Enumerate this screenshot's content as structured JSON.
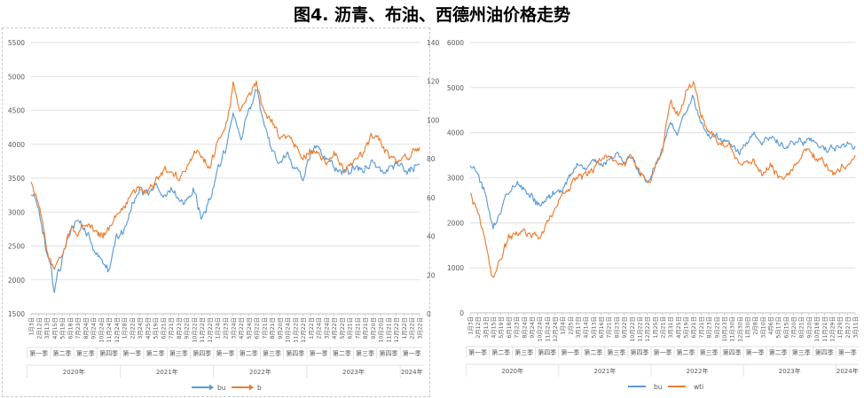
{
  "figure_title": "图4. 沥青、布油、西德州油价格走势",
  "colors": {
    "bu": "#5b9bd5",
    "oil": "#ed7d31",
    "grid": "#d9d9d9",
    "axis": "#bfbfbf"
  },
  "chart_data": [
    {
      "type": "line",
      "title": "",
      "y_left": {
        "ylim": [
          1500,
          5500
        ],
        "ticks": [
          1500,
          2000,
          2500,
          3000,
          3500,
          4000,
          4500,
          5000,
          5500
        ]
      },
      "y_right": {
        "ylim": [
          0,
          140
        ],
        "ticks": [
          0,
          20,
          40,
          60,
          80,
          100,
          120,
          140
        ]
      },
      "date_ticks": [
        "1月3日",
        "2月12日",
        "3月13日",
        "4月15日",
        "5月19日",
        "6月18日",
        "7月23日",
        "8月24日",
        "9月24日",
        "10月24日",
        "11月24日",
        "12月24日",
        "1月28日",
        "2月22日",
        "3月24日",
        "4月25日",
        "5月19日",
        "6月21日",
        "7月21日",
        "8月23日",
        "9月22日",
        "10月22日",
        "11月22日",
        "12月22日",
        "1月24日",
        "2月23日",
        "3月24日",
        "4月22日",
        "5月24日",
        "6月22日",
        "7月21日",
        "8月21日",
        "9月20日",
        "10月24日",
        "11月22日",
        "12月22日",
        "1月22日",
        "2月24日",
        "3月24日",
        "4月22日",
        "5月22日",
        "6月21日",
        "7月21日",
        "8月21日",
        "9月20日",
        "10月20日",
        "11月21日",
        "12月22日",
        "1月22日",
        "2月22日",
        "3月22日"
      ],
      "quarter_groups": [
        {
          "label": "第一季",
          "count": 3
        },
        {
          "label": "第二季",
          "count": 3
        },
        {
          "label": "第三季",
          "count": 3
        },
        {
          "label": "第四季",
          "count": 3
        },
        {
          "label": "第一季",
          "count": 3
        },
        {
          "label": "第二季",
          "count": 3
        },
        {
          "label": "第三季",
          "count": 3
        },
        {
          "label": "第四季",
          "count": 3
        },
        {
          "label": "第一季",
          "count": 3
        },
        {
          "label": "第二季",
          "count": 3
        },
        {
          "label": "第三季",
          "count": 3
        },
        {
          "label": "第四季",
          "count": 3
        },
        {
          "label": "第一季",
          "count": 3
        },
        {
          "label": "第二季",
          "count": 3
        },
        {
          "label": "第三季",
          "count": 3
        },
        {
          "label": "第四季",
          "count": 3
        },
        {
          "label": "第一季",
          "count": 3
        }
      ],
      "year_groups": [
        {
          "label": "2020年",
          "count": 12
        },
        {
          "label": "2021年",
          "count": 12
        },
        {
          "label": "2022年",
          "count": 12
        },
        {
          "label": "2023年",
          "count": 12
        },
        {
          "label": "2024年",
          "count": 3
        }
      ],
      "series": [
        {
          "name": "bu",
          "axis": "left",
          "x": [
            "2020-01",
            "2020-02",
            "2020-03",
            "2020-04",
            "2020-05",
            "2020-06",
            "2020-07",
            "2020-08",
            "2020-09",
            "2020-10",
            "2020-11",
            "2020-12",
            "2021-01",
            "2021-02",
            "2021-03",
            "2021-04",
            "2021-05",
            "2021-06",
            "2021-07",
            "2021-08",
            "2021-09",
            "2021-10",
            "2021-11",
            "2021-12",
            "2022-01",
            "2022-02",
            "2022-03",
            "2022-04",
            "2022-05",
            "2022-06",
            "2022-07",
            "2022-08",
            "2022-09",
            "2022-10",
            "2022-11",
            "2022-12",
            "2023-01",
            "2023-02",
            "2023-03",
            "2023-04",
            "2023-05",
            "2023-06",
            "2023-07",
            "2023-08",
            "2023-09",
            "2023-10",
            "2023-11",
            "2023-12",
            "2024-01",
            "2024-02",
            "2024-03"
          ],
          "values": [
            3300,
            3000,
            2400,
            1850,
            2300,
            2750,
            2850,
            2700,
            2500,
            2300,
            2150,
            2600,
            2750,
            3100,
            3300,
            3250,
            3450,
            3200,
            3350,
            3200,
            3150,
            3350,
            2900,
            3150,
            3600,
            3900,
            4400,
            4000,
            4500,
            4800,
            4250,
            3900,
            3750,
            3850,
            3650,
            3500,
            3850,
            3950,
            3800,
            3700,
            3600,
            3600,
            3650,
            3650,
            3750,
            3600,
            3650,
            3700,
            3600,
            3650,
            3700
          ]
        },
        {
          "name": "b",
          "axis": "right",
          "x": [
            "2020-01",
            "2020-02",
            "2020-03",
            "2020-04",
            "2020-05",
            "2020-06",
            "2020-07",
            "2020-08",
            "2020-09",
            "2020-10",
            "2020-11",
            "2020-12",
            "2021-01",
            "2021-02",
            "2021-03",
            "2021-04",
            "2021-05",
            "2021-06",
            "2021-07",
            "2021-08",
            "2021-09",
            "2021-10",
            "2021-11",
            "2021-12",
            "2022-01",
            "2022-02",
            "2022-03",
            "2022-04",
            "2022-05",
            "2022-06",
            "2022-07",
            "2022-08",
            "2022-09",
            "2022-10",
            "2022-11",
            "2022-12",
            "2023-01",
            "2023-02",
            "2023-03",
            "2023-04",
            "2023-05",
            "2023-06",
            "2023-07",
            "2023-08",
            "2023-09",
            "2023-10",
            "2023-11",
            "2023-12",
            "2024-01",
            "2024-02",
            "2024-03"
          ],
          "values": [
            68,
            56,
            33,
            23,
            32,
            42,
            43,
            45,
            42,
            40,
            44,
            50,
            55,
            63,
            65,
            65,
            68,
            73,
            74,
            70,
            74,
            84,
            80,
            76,
            87,
            97,
            118,
            105,
            113,
            120,
            104,
            98,
            90,
            93,
            88,
            80,
            84,
            83,
            77,
            82,
            75,
            75,
            79,
            85,
            92,
            88,
            82,
            78,
            79,
            82,
            86
          ]
        }
      ],
      "legend": "bottom"
    },
    {
      "type": "line",
      "title": "",
      "y": {
        "ylim": [
          0,
          6000
        ],
        "ticks": [
          0,
          1000,
          2000,
          3000,
          4000,
          5000,
          6000
        ]
      },
      "date_ticks": [
        "1月3日",
        "2月12日",
        "3月13日",
        "4月15日",
        "5月19日",
        "6月18日",
        "7月23日",
        "8月24日",
        "9月24日",
        "10月24日",
        "11月24日",
        "12月24日",
        "1月4日",
        "2月5日",
        "3月17日",
        "4月14日",
        "5月13日",
        "6月16日",
        "7月21日",
        "8月23日",
        "9月22日",
        "10月22日",
        "11月22日",
        "12月22日",
        "1月25日",
        "2月21日",
        "3月31日",
        "4月25日",
        "5月19日",
        "6月21日",
        "7月21日",
        "8月23日",
        "9月22日",
        "10月23日",
        "11月30日",
        "12月30日",
        "1月30日",
        "2月8日",
        "3月10日",
        "4月6日",
        "5月17日",
        "6月15日",
        "7月20日",
        "8月21日",
        "9月20日",
        "10月18日",
        "11月21日",
        "12月29日",
        "1月29日",
        "2月27日",
        "3月11日"
      ],
      "quarter_groups": [
        {
          "label": "第一季",
          "count": 3
        },
        {
          "label": "第二季",
          "count": 3
        },
        {
          "label": "第三季",
          "count": 3
        },
        {
          "label": "第四季",
          "count": 3
        },
        {
          "label": "第一季",
          "count": 3
        },
        {
          "label": "第二季",
          "count": 3
        },
        {
          "label": "第三季",
          "count": 3
        },
        {
          "label": "第四季",
          "count": 3
        },
        {
          "label": "第一季",
          "count": 3
        },
        {
          "label": "第二季",
          "count": 3
        },
        {
          "label": "第三季",
          "count": 3
        },
        {
          "label": "第四季",
          "count": 3
        },
        {
          "label": "第一季",
          "count": 3
        },
        {
          "label": "第二季",
          "count": 3
        },
        {
          "label": "第三季",
          "count": 3
        },
        {
          "label": "第四季",
          "count": 3
        },
        {
          "label": "第一季",
          "count": 3
        }
      ],
      "year_groups": [
        {
          "label": "2020年",
          "count": 12
        },
        {
          "label": "2021年",
          "count": 12
        },
        {
          "label": "2022年",
          "count": 12
        },
        {
          "label": "2023年",
          "count": 12
        },
        {
          "label": "2024年",
          "count": 3
        }
      ],
      "series": [
        {
          "name": "bu",
          "x": [
            "2020-01",
            "2020-02",
            "2020-03",
            "2020-04",
            "2020-05",
            "2020-06",
            "2020-07",
            "2020-08",
            "2020-09",
            "2020-10",
            "2020-11",
            "2020-12",
            "2021-01",
            "2021-02",
            "2021-03",
            "2021-04",
            "2021-05",
            "2021-06",
            "2021-07",
            "2021-08",
            "2021-09",
            "2021-10",
            "2021-11",
            "2021-12",
            "2022-01",
            "2022-02",
            "2022-03",
            "2022-04",
            "2022-05",
            "2022-06",
            "2022-07",
            "2022-08",
            "2022-09",
            "2022-10",
            "2022-11",
            "2022-12",
            "2023-01",
            "2023-02",
            "2023-03",
            "2023-04",
            "2023-05",
            "2023-06",
            "2023-07",
            "2023-08",
            "2023-09",
            "2023-10",
            "2023-11",
            "2023-12",
            "2024-01",
            "2024-02",
            "2024-03"
          ],
          "values": [
            3300,
            3100,
            2600,
            1900,
            2300,
            2700,
            2900,
            2700,
            2600,
            2400,
            2500,
            2700,
            2750,
            3000,
            3300,
            3200,
            3400,
            3300,
            3400,
            3500,
            3300,
            3500,
            3100,
            2900,
            3300,
            3700,
            4300,
            4000,
            4500,
            4800,
            4200,
            3900,
            3850,
            3800,
            3700,
            3600,
            3850,
            3900,
            3800,
            3850,
            3750,
            3700,
            3800,
            3800,
            3900,
            3700,
            3650,
            3700,
            3650,
            3700,
            3700
          ]
        },
        {
          "name": "wti",
          "x": [
            "2020-01",
            "2020-02",
            "2020-03",
            "2020-04",
            "2020-05",
            "2020-06",
            "2020-07",
            "2020-08",
            "2020-09",
            "2020-10",
            "2020-11",
            "2020-12",
            "2021-01",
            "2021-02",
            "2021-03",
            "2021-04",
            "2021-05",
            "2021-06",
            "2021-07",
            "2021-08",
            "2021-09",
            "2021-10",
            "2021-11",
            "2021-12",
            "2022-01",
            "2022-02",
            "2022-03",
            "2022-04",
            "2022-05",
            "2022-06",
            "2022-07",
            "2022-08",
            "2022-09",
            "2022-10",
            "2022-11",
            "2022-12",
            "2023-01",
            "2023-02",
            "2023-03",
            "2023-04",
            "2023-05",
            "2023-06",
            "2023-07",
            "2023-08",
            "2023-09",
            "2023-10",
            "2023-11",
            "2023-12",
            "2024-01",
            "2024-02",
            "2024-03"
          ],
          "values": [
            2700,
            2300,
            1500,
            700,
            1200,
            1700,
            1800,
            1850,
            1700,
            1750,
            2000,
            2300,
            2600,
            2800,
            3000,
            3000,
            3200,
            3400,
            3500,
            3400,
            3300,
            3500,
            3200,
            2900,
            3200,
            3600,
            4800,
            4400,
            4900,
            5200,
            4400,
            4000,
            3800,
            3700,
            3600,
            3300,
            3400,
            3300,
            3100,
            3300,
            3000,
            3000,
            3200,
            3500,
            3700,
            3400,
            3300,
            3100,
            3200,
            3300,
            3500
          ]
        }
      ],
      "legend": "bottom"
    }
  ]
}
